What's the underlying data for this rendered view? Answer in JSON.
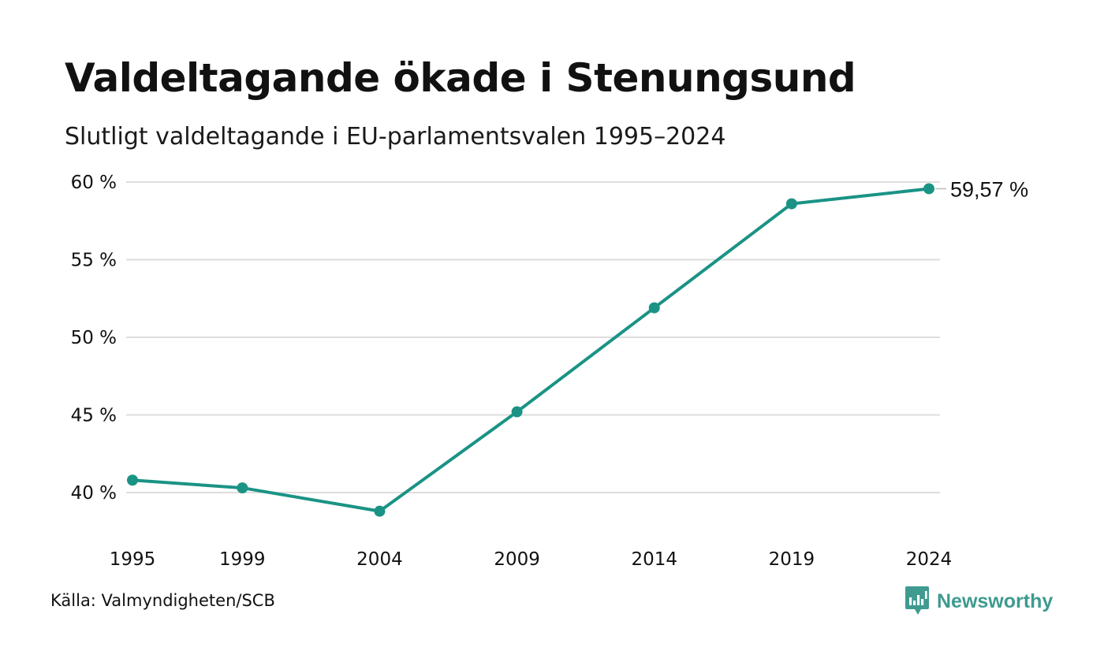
{
  "title": "Valdeltagande ökade i Stenungsund",
  "subtitle": "Slutligt valdeltagande i EU-parlamentsvalen 1995–2024",
  "source": "Källa: Valmyndigheten/SCB",
  "brand": {
    "name": "Newsworthy",
    "icon": "newsworthy-logo-icon",
    "color": "#3f9a8f"
  },
  "colors": {
    "line": "#1a9385",
    "grid": "#dddddd"
  },
  "chart_data": {
    "type": "line",
    "x": [
      1995,
      1999,
      2004,
      2009,
      2014,
      2019,
      2024
    ],
    "x_tick_labels": [
      "1995",
      "1999",
      "2004",
      "2009",
      "2014",
      "2019",
      "2024"
    ],
    "series": [
      {
        "values": [
          40.8,
          40.3,
          38.8,
          45.2,
          51.9,
          58.6,
          59.57
        ]
      }
    ],
    "ylim": [
      40,
      60
    ],
    "y_ticks": [
      40,
      45,
      50,
      55,
      60
    ],
    "y_tick_labels": [
      "40 %",
      "45 %",
      "50 %",
      "55 %",
      "60 %"
    ],
    "end_label": "59,57 %",
    "grid": true,
    "legend": "none"
  }
}
